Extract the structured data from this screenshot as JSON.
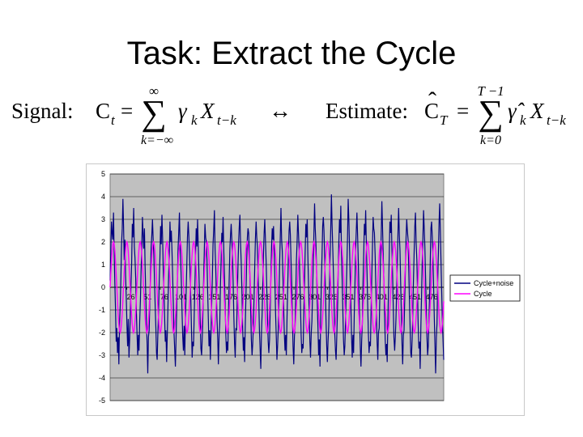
{
  "slide": {
    "title": "Task: Extract the Cycle"
  },
  "formula": {
    "left_label": "Signal:",
    "left_lhs": "C",
    "left_lhs_sub": "t",
    "equals": "=",
    "sum_upper_left": "∞",
    "sum_lower_left": "k=−∞",
    "gamma": "γ",
    "gamma_sub": "k",
    "x": "X",
    "x_sub": "t−k",
    "arrow": "↔",
    "right_label": "Estimate:",
    "right_lhs": "C",
    "right_lhs_sub": "T",
    "hat": "ˆ",
    "sum_upper_right": "T −1",
    "sum_lower_right": "k=0",
    "gamma_hat": "γ̂"
  },
  "chart_data": {
    "type": "line",
    "title": "",
    "xlabel": "",
    "ylabel": "",
    "ylim": [
      -5,
      5
    ],
    "xlim": [
      1,
      500
    ],
    "y_ticks": [
      "5",
      "4",
      "3",
      "2",
      "1",
      "0",
      "-1",
      "-2",
      "-3",
      "-4",
      "-5"
    ],
    "x_tick_labels": [
      "26",
      "51",
      "76",
      "101",
      "126",
      "151",
      "176",
      "201",
      "226",
      "251",
      "276",
      "301",
      "326",
      "351",
      "376",
      "401",
      "426",
      "451",
      "476"
    ],
    "x_tick_values": [
      26,
      51,
      76,
      101,
      126,
      151,
      176,
      201,
      226,
      251,
      276,
      301,
      326,
      351,
      376,
      401,
      426,
      451,
      476
    ],
    "grid": true,
    "plot_background": "#c0c0c0",
    "legend_position": "right",
    "series": [
      {
        "name": "Cycle+noise",
        "color": "#000080",
        "description_values": "noisy cycle, period ~20, amplitude ~2 plus noise up to ~±4",
        "values": [
          0.3,
          1.6,
          2.9,
          2.4,
          2.1,
          3.3,
          1.5,
          0.2,
          -0.9,
          -2.4,
          -1.8,
          -2.9,
          -2.2,
          -3.4,
          -1.6,
          -0.8,
          0.4,
          1.9,
          2.6,
          3.9,
          2.7,
          1.2,
          2.1,
          0.5,
          -0.4,
          -1.7,
          -2.6,
          -1.4,
          -3.1,
          -2.3,
          -1.2,
          0.1,
          1.1,
          2.8,
          2.2,
          3.5,
          1.8,
          1.3,
          0.4,
          -1.1,
          -2.0,
          -3.0,
          -2.1,
          -2.8,
          -1.5,
          -0.6,
          0.7,
          1.6,
          3.1,
          2.4,
          1.7,
          2.6,
          0.9,
          -0.3,
          -1.6,
          -2.5,
          -3.8,
          -2.2,
          -1.9,
          -0.7,
          0.5,
          1.8,
          2.3,
          3.0,
          2.1,
          1.4,
          0.3,
          -0.9,
          -1.8,
          -2.9,
          -3.2,
          -2.0,
          -1.1,
          0.2,
          1.3,
          2.7,
          1.9,
          3.2,
          2.2,
          0.8,
          -0.2,
          -1.3,
          -2.4,
          -1.9,
          -3.3,
          -2.1,
          -0.9,
          0.6,
          1.5,
          2.9,
          2.0,
          2.5,
          1.6,
          0.4,
          -0.8,
          -2.0,
          -2.7,
          -3.5,
          -2.3,
          -1.0,
          0.3,
          1.7,
          2.4,
          3.3,
          1.8,
          1.1,
          0.2,
          -1.2,
          -2.2,
          -2.8,
          -1.7,
          -3.0,
          -1.4,
          -0.2,
          1.0,
          2.2,
          2.9,
          2.3,
          1.5,
          0.6,
          -0.6,
          -1.9,
          -3.1,
          -2.4,
          -2.6,
          -1.3,
          0.1,
          1.4,
          2.6,
          1.8,
          3.0,
          1.9,
          0.7,
          -0.5,
          -1.6,
          -2.7,
          -3.0,
          -2.2,
          -1.2,
          0.4,
          1.6,
          2.8,
          2.2,
          2.0,
          1.2,
          -0.1,
          -1.4,
          -2.6,
          -1.9,
          -3.2,
          -2.0,
          -0.8,
          0.5,
          1.9,
          2.5,
          3.4,
          1.7,
          0.9,
          -0.3,
          -1.5,
          -2.3,
          -3.4,
          -2.1,
          -1.6,
          0.0,
          1.2,
          2.4,
          2.0,
          3.1,
          1.6,
          0.5,
          -0.7,
          -2.1,
          -2.9,
          -2.4,
          -2.8,
          -1.1,
          0.3,
          1.7,
          2.3,
          2.8,
          2.1,
          1.3,
          0.1,
          -1.3,
          -2.5,
          -3.1,
          -1.8,
          -1.9,
          -0.5,
          0.8,
          2.0,
          2.7,
          3.2,
          1.9,
          1.0,
          -0.2,
          -1.7,
          -2.8,
          -2.2,
          -3.3,
          -1.5,
          -0.3,
          1.1,
          2.2,
          2.6,
          2.4,
          1.4,
          0.2,
          -1.0,
          -2.3,
          -3.0,
          -2.5,
          -1.7,
          -0.4,
          0.9,
          2.1,
          2.9,
          2.2,
          1.8,
          0.6,
          -0.6,
          -1.9,
          -2.7,
          -3.6,
          -2.0,
          -1.2,
          0.2,
          1.5,
          2.4,
          3.0,
          2.0,
          1.1,
          -0.1,
          -1.4,
          -2.4,
          -2.9,
          -2.3,
          -1.0,
          0.4,
          1.8,
          2.6,
          2.1,
          2.7,
          1.5,
          0.3,
          -1.1,
          -2.2,
          -3.2,
          -2.6,
          -1.8,
          -0.5,
          1.0,
          2.3,
          3.5,
          2.1,
          1.6,
          0.4,
          -0.9,
          -2.0,
          -2.8,
          -2.1,
          -3.0,
          -1.3,
          0.0,
          1.3,
          2.5,
          2.9,
          2.3,
          1.2,
          0.1,
          -1.3,
          -2.6,
          -3.4,
          -2.2,
          -1.6,
          -0.2,
          1.2,
          2.0,
          3.2,
          2.4,
          1.7,
          0.5,
          -0.8,
          -2.1,
          -2.9,
          -2.5,
          -2.7,
          -1.1,
          0.3,
          1.6,
          2.8,
          2.2,
          3.0,
          1.4,
          0.2,
          -1.2,
          -2.4,
          -3.1,
          -2.0,
          -1.5,
          -0.3,
          1.1,
          2.4,
          3.7,
          2.6,
          1.9,
          0.7,
          -0.6,
          -1.8,
          -3.0,
          -2.3,
          -3.5,
          -1.4,
          0.1,
          1.4,
          2.7,
          3.1,
          2.5,
          1.3,
          0.0,
          -1.4,
          -2.6,
          -3.3,
          -2.4,
          -1.7,
          -0.1,
          1.3,
          2.6,
          4.1,
          2.8,
          1.8,
          0.6,
          -0.7,
          -2.0,
          -2.8,
          -3.2,
          -2.2,
          -1.0,
          0.5,
          1.9,
          3.0,
          2.4,
          3.6,
          1.6,
          0.3,
          -1.0,
          -2.3,
          -3.0,
          -2.6,
          -1.5,
          -0.2,
          1.0,
          2.2,
          3.9,
          2.9,
          1.7,
          0.4,
          -0.9,
          -2.2,
          -3.1,
          -2.1,
          -2.9,
          -1.2,
          0.2,
          1.7,
          2.5,
          3.3,
          2.2,
          1.1,
          -0.2,
          -1.5,
          -2.7,
          -3.5,
          -2.3,
          -1.6,
          0.1,
          1.5,
          2.8,
          2.3,
          3.4,
          1.8,
          0.6,
          -0.8,
          -2.1,
          -2.9,
          -2.4,
          -2.6,
          -1.0,
          0.4,
          1.8,
          3.1,
          2.6,
          2.4,
          1.4,
          0.1,
          -1.3,
          -2.5,
          -3.2,
          -2.0,
          -1.8,
          -0.4,
          1.2,
          2.3,
          3.8,
          2.7,
          1.5,
          0.3,
          -1.1,
          -2.3,
          -3.0,
          -2.5,
          -3.3,
          -1.3,
          0.0,
          1.4,
          2.9,
          2.4,
          3.2,
          1.7,
          0.5,
          -0.9,
          -2.2,
          -2.8,
          -2.2,
          -1.4,
          -0.1,
          1.1,
          2.4,
          3.5,
          2.3,
          1.6,
          0.2,
          -1.2,
          -2.5,
          -3.4,
          -2.1,
          -1.9,
          -0.6,
          0.9,
          2.2,
          3.0,
          2.5,
          2.1,
          0.8,
          -0.5,
          -1.8,
          -2.9,
          -3.1,
          -2.3,
          -1.1,
          0.3,
          1.6,
          2.7,
          3.3,
          2.0,
          1.2,
          -0.1,
          -1.6,
          -2.7,
          -2.4,
          -3.6,
          -1.7,
          -0.4,
          1.0,
          2.2,
          3.4,
          2.6,
          1.8,
          0.4,
          -0.8,
          -2.1,
          -3.0,
          -2.6,
          -1.5,
          -0.3,
          1.2,
          2.6,
          2.9,
          2.2,
          1.3,
          0.0,
          -1.4,
          -2.6,
          -3.8,
          -2.2,
          -1.6,
          0.2,
          1.5,
          2.8,
          3.7,
          2.5,
          1.0,
          -0.2,
          -1.5,
          -2.4,
          -3.2
        ]
      },
      {
        "name": "Cycle",
        "color": "#ff00ff",
        "period": 20,
        "amplitude": 2
      }
    ]
  }
}
